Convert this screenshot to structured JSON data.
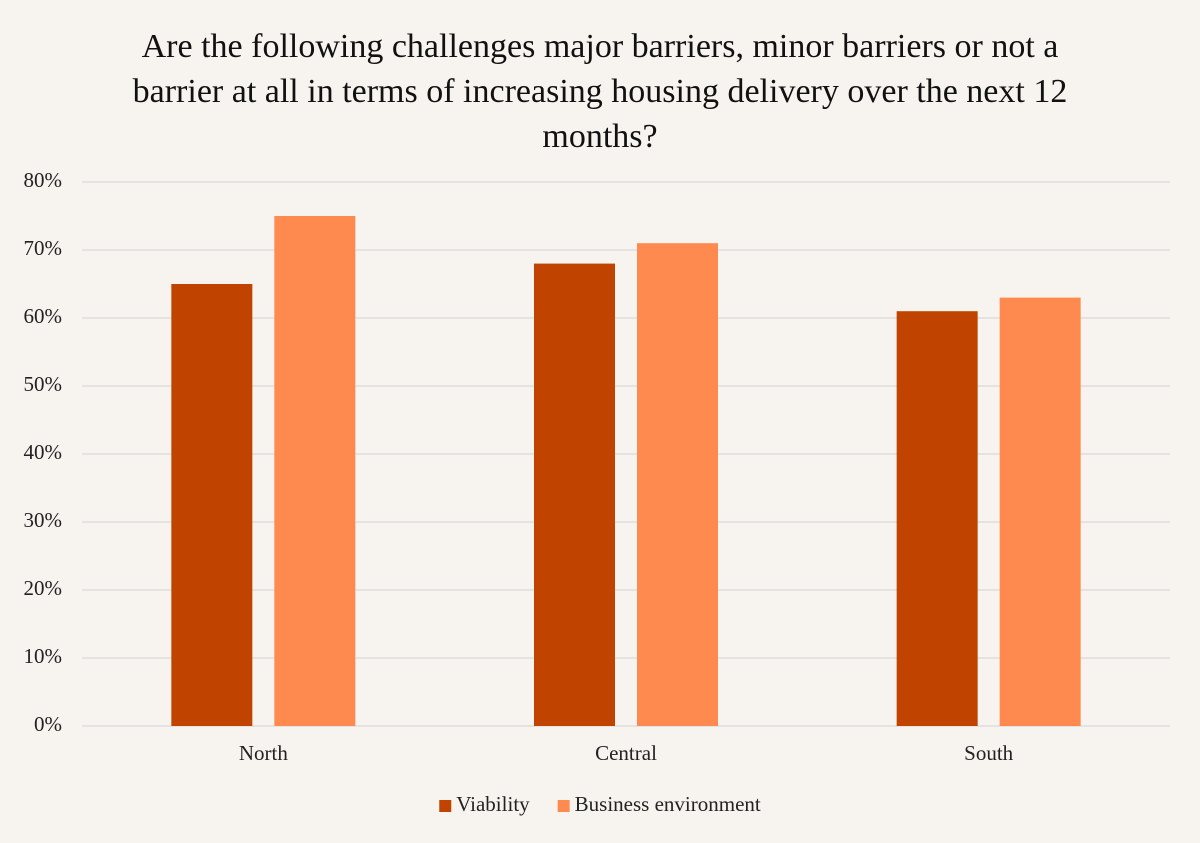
{
  "chart_data": {
    "type": "bar",
    "title": "Are the following challenges major barriers, minor barriers or not a barrier at all in terms of increasing housing delivery over the next 12 months?",
    "categories": [
      "North",
      "Central",
      "South"
    ],
    "series": [
      {
        "name": "Viability",
        "color": "#c04400",
        "values": [
          65,
          68,
          61
        ]
      },
      {
        "name": "Business environment",
        "color": "#ff8a50",
        "values": [
          75,
          71,
          63
        ]
      }
    ],
    "ylim": [
      0,
      80
    ],
    "yticks": [
      {
        "value": 0,
        "label": "0%"
      },
      {
        "value": 10,
        "label": "10%"
      },
      {
        "value": 20,
        "label": "20%"
      },
      {
        "value": 30,
        "label": "30%"
      },
      {
        "value": 40,
        "label": "40%"
      },
      {
        "value": 50,
        "label": "50%"
      },
      {
        "value": 60,
        "label": "60%"
      },
      {
        "value": 70,
        "label": "70%"
      },
      {
        "value": 80,
        "label": "80%"
      }
    ],
    "grid": true,
    "legend": "bottom"
  }
}
